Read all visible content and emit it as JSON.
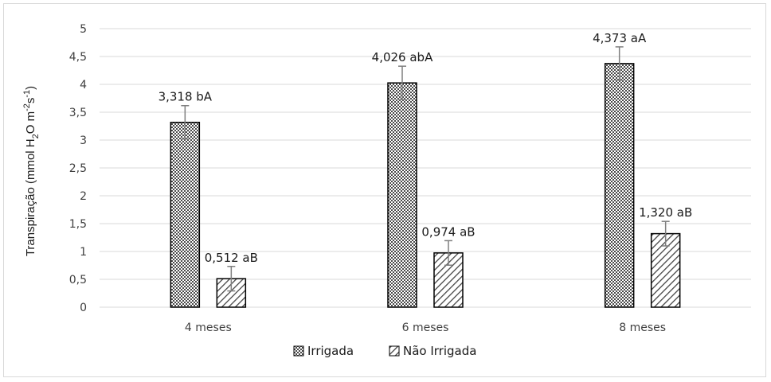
{
  "chart_data": {
    "type": "bar",
    "title": "",
    "xlabel": "",
    "ylabel": {
      "main": "Transpiração (mmol H",
      "sub2": "2",
      "mid": "O m",
      "sup1": "-2",
      "mid2": "s",
      "sup2": "-1",
      "end": ")"
    },
    "ylim": [
      0,
      5
    ],
    "yticks": [
      "0",
      "0,5",
      "1",
      "1,5",
      "2",
      "2,5",
      "3",
      "3,5",
      "4",
      "4,5",
      "5"
    ],
    "ytick_values": [
      0,
      0.5,
      1,
      1.5,
      2,
      2.5,
      3,
      3.5,
      4,
      4.5,
      5
    ],
    "grid": "horizontal",
    "legend_position": "bottom",
    "categories": [
      "4 meses",
      "6 meses",
      "8 meses"
    ],
    "series": [
      {
        "name": "Irrigada",
        "pattern": "crosshatch",
        "values": [
          3.318,
          4.026,
          4.373
        ],
        "errors": [
          0.3,
          0.3,
          0.3
        ],
        "labels": [
          "3,318 bA",
          "4,026 abA",
          "4,373 aA"
        ]
      },
      {
        "name": "Não Irrigada",
        "pattern": "diagonal",
        "values": [
          0.512,
          0.974,
          1.32
        ],
        "errors": [
          0.22,
          0.22,
          0.22
        ],
        "labels": [
          "0,512 aB",
          "0,974 aB",
          "1,320 aB"
        ]
      }
    ],
    "colors": {
      "grid": "#d9d9d9",
      "bar_stroke": "#000000",
      "error_bar": "#7f7f7f"
    }
  }
}
